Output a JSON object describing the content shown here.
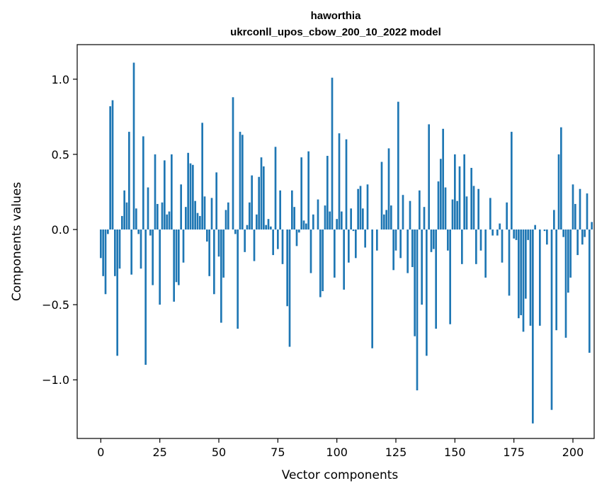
{
  "chart_data": {
    "type": "bar",
    "title_lines": [
      "haworthia",
      "ukrconll_upos_cbow_200_10_2022 model"
    ],
    "xlabel": "Vector components",
    "ylabel": "Components values",
    "xlim": [
      -10,
      209
    ],
    "ylim": [
      -1.39,
      1.23
    ],
    "x_ticks": [
      0,
      25,
      50,
      75,
      100,
      125,
      150,
      175,
      200
    ],
    "x_tick_labels": [
      "0",
      "25",
      "50",
      "75",
      "100",
      "125",
      "150",
      "175",
      "200"
    ],
    "y_ticks": [
      -1.0,
      -0.5,
      0.0,
      0.5,
      1.0
    ],
    "y_tick_labels": [
      "−1.0",
      "−0.5",
      "0.0",
      "0.5",
      "1.0"
    ],
    "bar_color": "#1f77b4",
    "values": [
      -0.19,
      -0.31,
      -0.43,
      -0.03,
      0.82,
      0.86,
      -0.31,
      -0.84,
      -0.26,
      0.09,
      0.26,
      0.18,
      0.65,
      -0.3,
      1.11,
      0.14,
      -0.03,
      -0.26,
      0.62,
      -0.9,
      0.28,
      -0.04,
      -0.37,
      0.5,
      0.17,
      -0.5,
      0.18,
      0.46,
      0.1,
      0.12,
      0.5,
      -0.48,
      -0.35,
      -0.37,
      0.3,
      -0.22,
      0.15,
      0.51,
      0.44,
      0.43,
      0.19,
      0.11,
      0.09,
      0.71,
      0.22,
      -0.08,
      -0.31,
      0.21,
      -0.43,
      0.38,
      -0.18,
      -0.62,
      -0.32,
      0.13,
      0.18,
      0.0,
      0.88,
      -0.03,
      -0.66,
      0.65,
      0.63,
      -0.15,
      0.03,
      0.18,
      0.36,
      -0.21,
      0.1,
      0.35,
      0.48,
      0.42,
      0.03,
      0.07,
      0.02,
      -0.17,
      0.55,
      -0.13,
      0.26,
      -0.23,
      0.0,
      -0.51,
      -0.78,
      0.26,
      0.15,
      -0.11,
      -0.02,
      0.48,
      0.06,
      0.04,
      0.52,
      -0.29,
      0.1,
      0.0,
      0.2,
      -0.45,
      -0.41,
      0.16,
      0.49,
      0.12,
      1.01,
      -0.32,
      0.07,
      0.64,
      0.12,
      -0.4,
      0.6,
      -0.22,
      0.14,
      -0.01,
      -0.19,
      0.27,
      0.29,
      0.14,
      -0.12,
      0.3,
      0.0,
      -0.79,
      0.0,
      -0.14,
      0.0,
      0.45,
      0.1,
      0.13,
      0.54,
      0.16,
      -0.27,
      -0.14,
      0.85,
      -0.19,
      0.23,
      0.0,
      -0.29,
      0.19,
      -0.25,
      -0.71,
      -1.07,
      0.26,
      -0.5,
      0.15,
      -0.84,
      0.7,
      -0.15,
      -0.13,
      -0.66,
      0.32,
      0.47,
      0.67,
      0.28,
      -0.14,
      -0.63,
      0.2,
      0.5,
      0.19,
      0.42,
      -0.23,
      0.5,
      0.22,
      0.0,
      0.41,
      0.29,
      -0.23,
      0.27,
      -0.14,
      0.0,
      -0.32,
      0.0,
      0.21,
      -0.04,
      0.0,
      -0.04,
      0.04,
      -0.22,
      0.0,
      0.18,
      -0.44,
      0.65,
      -0.06,
      -0.07,
      -0.59,
      -0.57,
      -0.68,
      -0.46,
      -0.07,
      -0.64,
      -1.29,
      0.03,
      0.0,
      -0.64,
      0.0,
      -0.01,
      -0.1,
      0.0,
      -1.2,
      0.13,
      -0.67,
      0.5,
      0.68,
      -0.05,
      -0.72,
      -0.42,
      -0.32,
      0.3,
      0.17,
      -0.17,
      0.27,
      -0.1,
      -0.05,
      0.24,
      -0.82,
      0.05
    ]
  }
}
